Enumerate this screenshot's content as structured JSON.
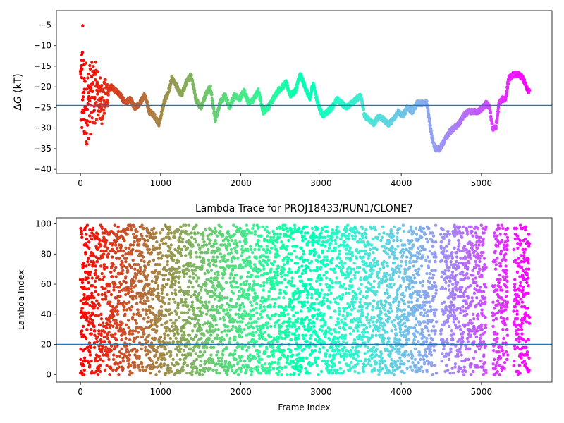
{
  "chart_data": [
    {
      "type": "scatter",
      "title": "",
      "xlabel": "",
      "ylabel": "ΔG (kT)",
      "ylabel_parts": {
        "delta": "Δ",
        "var": "G",
        "unit": " (kT)"
      },
      "xlim": [
        -300,
        5880
      ],
      "ylim": [
        -41,
        -1.5
      ],
      "xticks": [
        0,
        1000,
        2000,
        3000,
        4000,
        5000
      ],
      "xtick_labels": [
        "0",
        "1000",
        "2000",
        "3000",
        "4000",
        "5000"
      ],
      "yticks": [
        -5,
        -10,
        -15,
        -20,
        -25,
        -30,
        -35,
        -40
      ],
      "ytick_labels": [
        "−5",
        "−10",
        "−15",
        "−20",
        "−25",
        "−30",
        "−35",
        "−40"
      ],
      "reference_line": -24.5,
      "colormap": "rainbow (early frames red, late frames violet)",
      "n_points_approx": 5600,
      "trend_x": [
        0,
        40,
        80,
        120,
        160,
        200,
        260,
        320,
        380,
        440,
        500,
        560,
        620,
        680,
        740,
        800,
        860,
        920,
        980,
        1040,
        1100,
        1140,
        1200,
        1260,
        1320,
        1380,
        1440,
        1500,
        1560,
        1620,
        1680,
        1740,
        1800,
        1860,
        1920,
        1980,
        2040,
        2100,
        2160,
        2220,
        2280,
        2340,
        2400,
        2460,
        2520,
        2560,
        2620,
        2680,
        2740,
        2800,
        2860,
        2900,
        2960,
        3020,
        3080,
        3140,
        3200,
        3260,
        3320,
        3380,
        3440,
        3500,
        3540,
        3600,
        3660,
        3720,
        3780,
        3840,
        3900,
        3960,
        4020,
        4080,
        4140,
        4200,
        4260,
        4320,
        4380,
        4420,
        4480,
        4540,
        4600,
        4660,
        4720,
        4780,
        4840,
        4900,
        4960,
        5020,
        5060,
        5100,
        5140,
        5180,
        5220,
        5260,
        5300,
        5340,
        5400,
        5460,
        5520,
        5580
      ],
      "trend_y": [
        -20,
        -22,
        -24,
        -23,
        -22,
        -21,
        -24,
        -22,
        -20,
        -21,
        -22,
        -24,
        -23,
        -25,
        -24,
        -22,
        -26,
        -27,
        -29,
        -24,
        -21,
        -18,
        -20,
        -22,
        -19,
        -17,
        -23,
        -25,
        -22,
        -20,
        -28,
        -24,
        -22,
        -25,
        -22,
        -23,
        -21,
        -24,
        -23,
        -21,
        -26,
        -25,
        -23,
        -21,
        -20,
        -19,
        -22,
        -21,
        -17,
        -20,
        -23,
        -19,
        -24,
        -27,
        -26,
        -25,
        -23,
        -24,
        -25,
        -24,
        -23,
        -22,
        -27,
        -28,
        -29,
        -27,
        -28,
        -29,
        -28,
        -26,
        -27,
        -25,
        -26,
        -24,
        -24,
        -24,
        -32,
        -35,
        -35,
        -33,
        -31,
        -30,
        -29,
        -27,
        -26,
        -26,
        -26,
        -25,
        -24,
        -25,
        -30,
        -30,
        -24,
        -23,
        -23,
        -18,
        -17,
        -17,
        -18,
        -21
      ]
    },
    {
      "type": "scatter",
      "title": "Lambda Trace for PROJ18433/RUN1/CLONE7",
      "xlabel": "Frame Index",
      "ylabel": "Lambda Index",
      "xlim": [
        -300,
        5880
      ],
      "ylim": [
        -5,
        104
      ],
      "xticks": [
        0,
        1000,
        2000,
        3000,
        4000,
        5000
      ],
      "xtick_labels": [
        "0",
        "1000",
        "2000",
        "3000",
        "4000",
        "5000"
      ],
      "yticks": [
        0,
        20,
        40,
        60,
        80,
        100
      ],
      "ytick_labels": [
        "0",
        "20",
        "40",
        "60",
        "80",
        "100"
      ],
      "reference_line": 20,
      "colormap": "rainbow (early frames red, late frames violet)",
      "n_points_approx": 5600,
      "gap_frames": [
        [
          4440,
          4490
        ],
        [
          5060,
          5140
        ],
        [
          5330,
          5400
        ]
      ]
    }
  ]
}
